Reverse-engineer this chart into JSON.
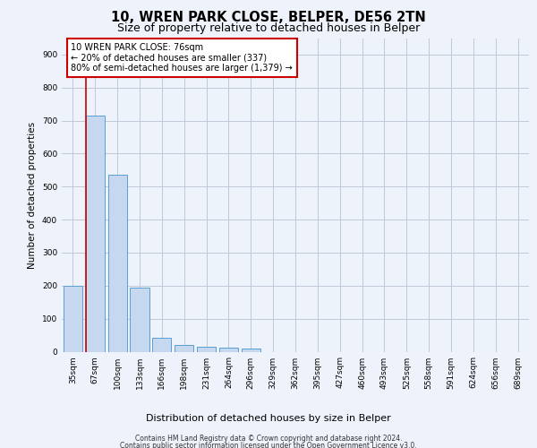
{
  "title_line1": "10, WREN PARK CLOSE, BELPER, DE56 2TN",
  "title_line2": "Size of property relative to detached houses in Belper",
  "xlabel": "Distribution of detached houses by size in Belper",
  "ylabel": "Number of detached properties",
  "categories": [
    "35sqm",
    "67sqm",
    "100sqm",
    "133sqm",
    "166sqm",
    "198sqm",
    "231sqm",
    "264sqm",
    "296sqm",
    "329sqm",
    "362sqm",
    "395sqm",
    "427sqm",
    "460sqm",
    "493sqm",
    "525sqm",
    "558sqm",
    "591sqm",
    "624sqm",
    "656sqm",
    "689sqm"
  ],
  "values": [
    200,
    715,
    537,
    193,
    42,
    20,
    15,
    13,
    10,
    0,
    0,
    0,
    0,
    0,
    0,
    0,
    0,
    0,
    0,
    0,
    0
  ],
  "bar_color": "#c5d8f0",
  "bar_edge_color": "#5a9fd4",
  "vline_color": "#cc0000",
  "annotation_text": "10 WREN PARK CLOSE: 76sqm\n← 20% of detached houses are smaller (337)\n80% of semi-detached houses are larger (1,379) →",
  "annotation_box_color": "#ffffff",
  "annotation_box_edge": "#cc0000",
  "ylim": [
    0,
    950
  ],
  "yticks": [
    0,
    100,
    200,
    300,
    400,
    500,
    600,
    700,
    800,
    900
  ],
  "footer_line1": "Contains HM Land Registry data © Crown copyright and database right 2024.",
  "footer_line2": "Contains public sector information licensed under the Open Government Licence v3.0.",
  "background_color": "#eef2fa",
  "plot_bg_color": "#eef2fa",
  "grid_color": "#c0c8d8",
  "title1_fontsize": 10.5,
  "title2_fontsize": 9,
  "ylabel_fontsize": 7.5,
  "xlabel_fontsize": 8,
  "tick_fontsize": 6.5,
  "annotation_fontsize": 7,
  "footer_fontsize": 5.5
}
